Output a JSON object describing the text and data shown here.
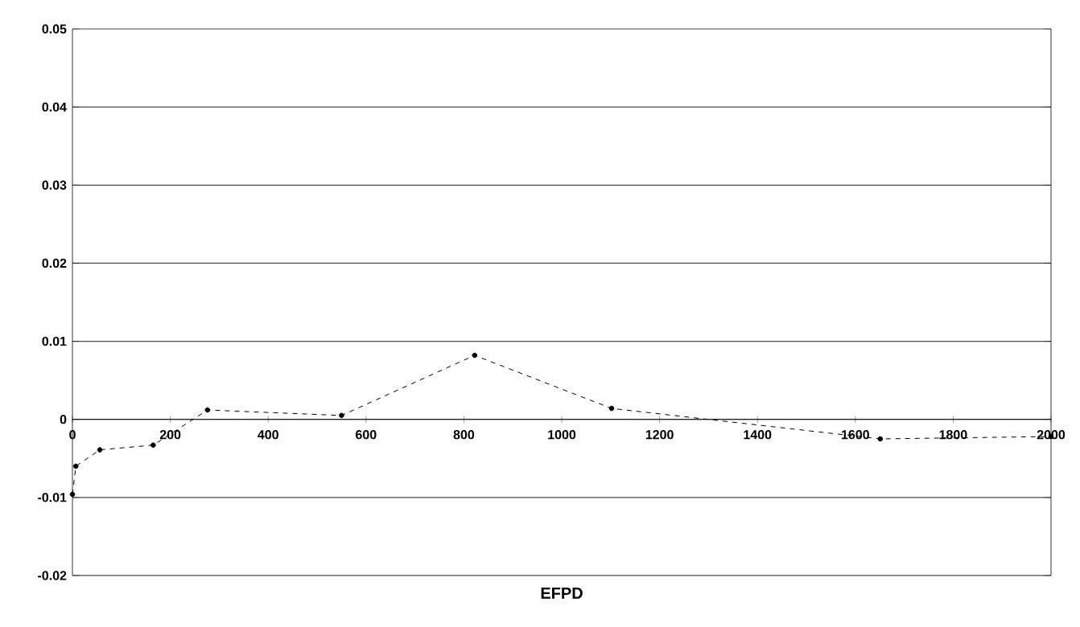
{
  "chart_data": {
    "type": "line",
    "xlabel": "EFPD",
    "x": [
      0,
      7,
      56,
      165,
      276,
      550,
      822,
      1102,
      1651,
      2000
    ],
    "values": [
      -0.0096,
      -0.006,
      -0.0039,
      -0.0033,
      0.0012,
      0.0005,
      0.0082,
      0.0014,
      -0.0025,
      -0.0022
    ],
    "color": "#000000",
    "marker": "circle",
    "line_style": "dashed",
    "xlim": [
      0,
      2000
    ],
    "xticks": [
      0,
      200,
      400,
      600,
      800,
      1000,
      1200,
      1400,
      1600,
      1800,
      2000
    ],
    "ylim": [
      -0.02,
      0.05
    ],
    "yticks": [
      -0.02,
      -0.01,
      0,
      0.01,
      0.02,
      0.03,
      0.04,
      0.05
    ],
    "grid": "y"
  }
}
